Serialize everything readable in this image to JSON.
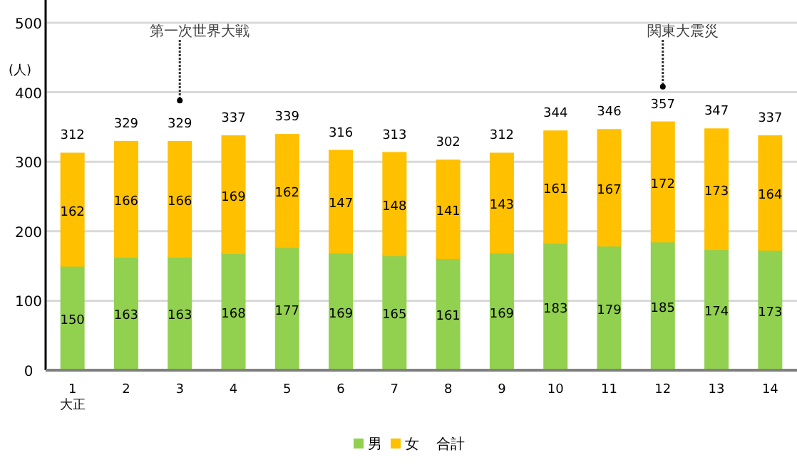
{
  "chart_data": {
    "type": "bar",
    "stacked": true,
    "ylabel": "(人)",
    "categories": [
      "1\n大正",
      "2",
      "3",
      "4",
      "5",
      "6",
      "7",
      "8",
      "9",
      "10",
      "11",
      "12",
      "13",
      "14"
    ],
    "series": [
      {
        "name": "男",
        "color": "#92d050",
        "values": [
          150,
          163,
          163,
          168,
          177,
          169,
          165,
          161,
          169,
          183,
          179,
          185,
          174,
          173
        ]
      },
      {
        "name": "女",
        "color": "#ffc000",
        "values": [
          162,
          166,
          166,
          169,
          162,
          147,
          148,
          141,
          143,
          161,
          167,
          172,
          173,
          164
        ]
      }
    ],
    "totals": [
      "312",
      "329",
      "329",
      "337",
      "339",
      "316",
      "313",
      "302",
      "312",
      "344",
      "346",
      "357",
      "347",
      "337"
    ],
    "data_labels": true,
    "ylim": [
      0,
      500
    ],
    "yticks": [
      0,
      100,
      200,
      300,
      400,
      500
    ],
    "grid": "y",
    "legend": "bottom",
    "annotations": [
      {
        "text": "第一次世界大戦",
        "x": "3",
        "y": 388
      },
      {
        "text": "関東大震災",
        "x": "12",
        "y": 408
      },
      "合計"
    ]
  }
}
